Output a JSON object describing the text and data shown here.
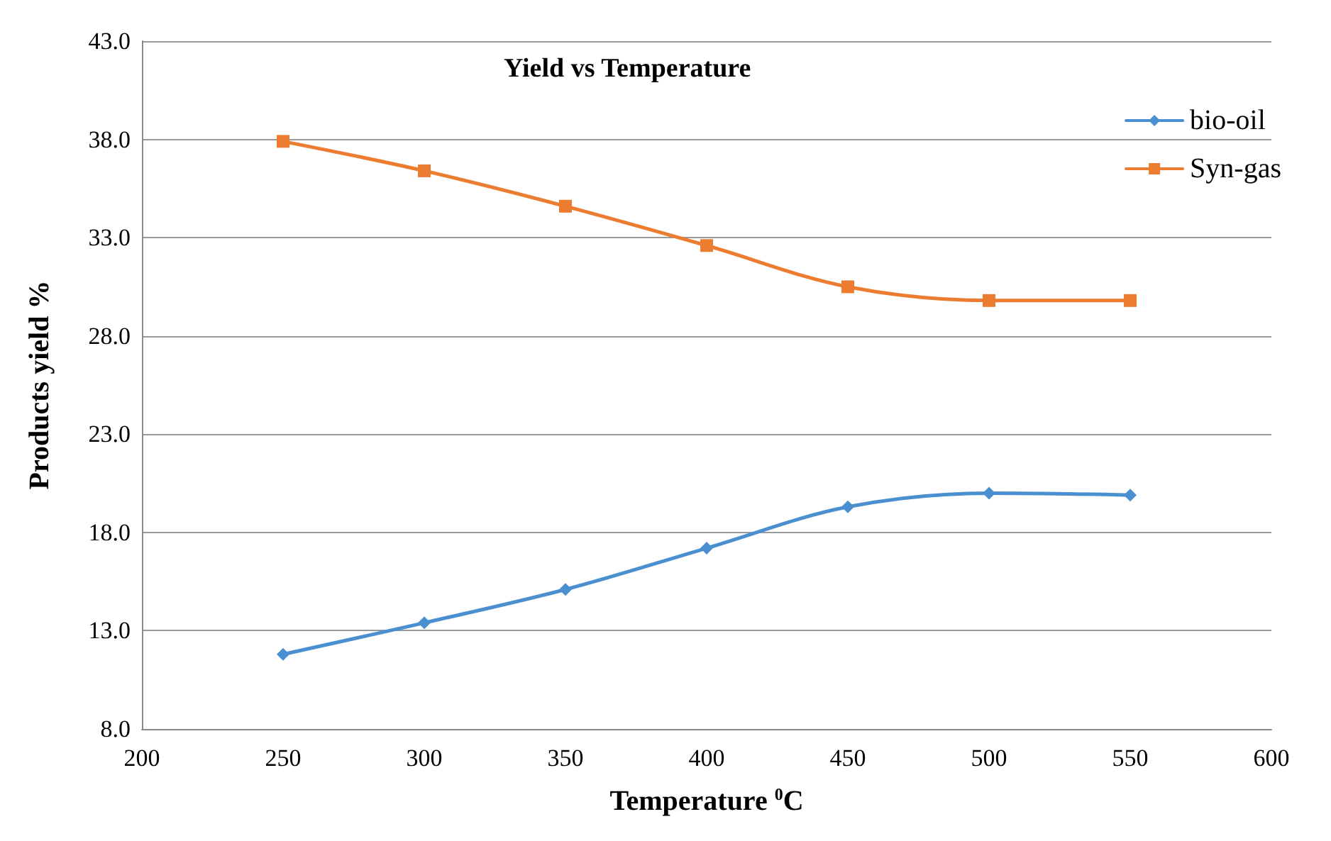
{
  "chart_data": {
    "type": "line",
    "title": "Yield vs Temperature",
    "xlabel": "Temperature $^{0}$C",
    "ylabel": "Products yield %",
    "x": [
      250,
      300,
      350,
      400,
      450,
      500,
      550
    ],
    "series": [
      {
        "name": "bio-oil",
        "color": "#4a8fd0",
        "marker": "diamond",
        "values": [
          11.8,
          13.4,
          15.1,
          17.2,
          19.3,
          20.0,
          19.9
        ]
      },
      {
        "name": "Syn-gas",
        "color": "#ec7c30",
        "marker": "square",
        "values": [
          37.9,
          36.4,
          34.6,
          32.6,
          30.5,
          29.8,
          29.8
        ]
      }
    ],
    "xlim": [
      200,
      600
    ],
    "xticks": [
      200,
      250,
      300,
      350,
      400,
      450,
      500,
      550,
      600
    ],
    "ylim": [
      8,
      43
    ],
    "yticks": [
      {
        "value": 8,
        "label": "8.0"
      },
      {
        "value": 13,
        "label": "13.0"
      },
      {
        "value": 18,
        "label": "18.0"
      },
      {
        "value": 23,
        "label": "23.0"
      },
      {
        "value": 28,
        "label": "28.0"
      },
      {
        "value": 33,
        "label": "33.0"
      },
      {
        "value": 38,
        "label": "38.0"
      },
      {
        "value": 43,
        "label": "43.0"
      }
    ],
    "grid": "y",
    "legend": "top right",
    "line_style": "solid"
  }
}
